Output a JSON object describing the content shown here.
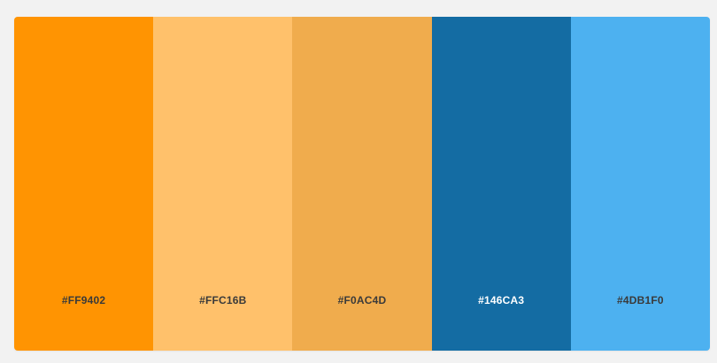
{
  "palette": {
    "swatches": [
      {
        "hex_label": "#FF9402",
        "color": "#FF9402",
        "label_color": "#3a3a3a"
      },
      {
        "hex_label": "#FFC16B",
        "color": "#FFC16B",
        "label_color": "#3a3a3a"
      },
      {
        "hex_label": "#F0AC4D",
        "color": "#F0AC4D",
        "label_color": "#3a3a3a"
      },
      {
        "hex_label": "#146CA3",
        "color": "#146CA3",
        "label_color": "#ffffff"
      },
      {
        "hex_label": "#4DB1F0",
        "color": "#4DB1F0",
        "label_color": "#3a3a3a"
      }
    ]
  }
}
